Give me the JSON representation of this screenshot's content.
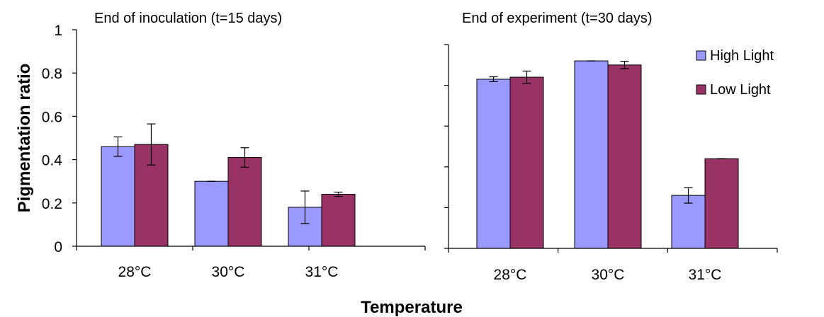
{
  "figure": {
    "xlabel": "Temperature",
    "ylabel": "Pigmentation ratio"
  },
  "legend": {
    "placement": "top-right",
    "items": [
      {
        "label": "High Light",
        "color": "#9999ff"
      },
      {
        "label": "Low Light",
        "color": "#993366"
      }
    ]
  },
  "chart_data": [
    {
      "type": "bar",
      "title": "End of inoculation (t=15 days)",
      "categories": [
        "28°C",
        "30°C",
        "31°C"
      ],
      "ylim": [
        0,
        1
      ],
      "yticks": [
        "0",
        "0.2",
        "0.4",
        "0.6",
        "0.8",
        "1"
      ],
      "grid": false,
      "series": [
        {
          "name": "High Light",
          "color": "#9999ff",
          "values": [
            0.46,
            0.3,
            0.18
          ],
          "errors": [
            0.045,
            0.0,
            0.075
          ]
        },
        {
          "name": "Low Light",
          "color": "#993366",
          "values": [
            0.47,
            0.41,
            0.24
          ],
          "errors": [
            0.095,
            0.045,
            0.01
          ]
        }
      ]
    },
    {
      "type": "bar",
      "title": "End of experiment (t=30 days)",
      "categories": [
        "28°C",
        "30°C",
        "31°C"
      ],
      "ylim": [
        0,
        1
      ],
      "yticks": [
        "",
        "",
        "",
        "",
        "",
        ""
      ],
      "grid": false,
      "series": [
        {
          "name": "High Light",
          "color": "#9999ff",
          "values": [
            0.83,
            0.92,
            0.26
          ],
          "errors": [
            0.012,
            0.0,
            0.038
          ]
        },
        {
          "name": "Low Light",
          "color": "#993366",
          "values": [
            0.84,
            0.9,
            0.44
          ],
          "errors": [
            0.03,
            0.018,
            0.0
          ]
        }
      ]
    }
  ]
}
